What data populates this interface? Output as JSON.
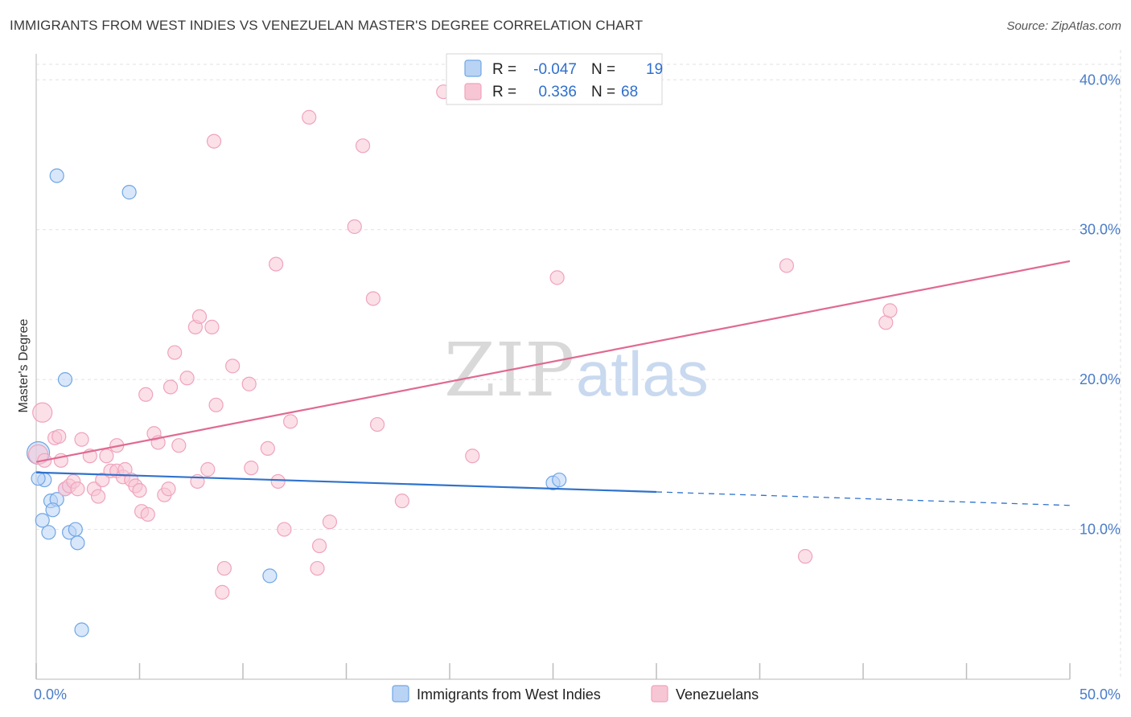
{
  "header": {
    "title": "IMMIGRANTS FROM WEST INDIES VS VENEZUELAN MASTER'S DEGREE CORRELATION CHART",
    "source": "Source: ZipAtlas.com"
  },
  "watermark": {
    "zip": "ZIP",
    "atlas": "atlas"
  },
  "chart_data": {
    "type": "scatter",
    "title": "IMMIGRANTS FROM WEST INDIES VS VENEZUELAN MASTER'S DEGREE CORRELATION CHART",
    "xlabel": "",
    "ylabel": "Master's Degree",
    "xlim": [
      0,
      50
    ],
    "ylim": [
      0,
      42
    ],
    "x_tick_labels": [
      "0.0%",
      "50.0%"
    ],
    "y_ticks": [
      10,
      20,
      30,
      40
    ],
    "y_tick_labels": [
      "10.0%",
      "20.0%",
      "30.0%",
      "40.0%"
    ],
    "grid": true,
    "legend_position": "top-center",
    "series": [
      {
        "name": "Immigrants from West Indies",
        "color": "#6fa6e6",
        "fill": "#b9d3f5",
        "line_color": "#2f72cc",
        "R": "-0.047",
        "N": "19",
        "trend": {
          "x0": 0,
          "y0": 13.8,
          "x1": 30,
          "y1": 12.5,
          "dash_to_x": 50,
          "dash_to_y": 11.6
        },
        "points": [
          [
            0.1,
            15.1,
            14
          ],
          [
            0.4,
            13.3,
            8
          ],
          [
            1.0,
            33.6,
            8
          ],
          [
            4.5,
            32.5,
            8
          ],
          [
            1.4,
            20.0,
            8
          ],
          [
            0.7,
            11.9,
            8
          ],
          [
            1.0,
            12.0,
            8
          ],
          [
            1.4,
            12.7,
            8
          ],
          [
            0.8,
            11.3,
            8
          ],
          [
            0.3,
            10.6,
            8
          ],
          [
            0.6,
            9.8,
            8
          ],
          [
            1.6,
            9.8,
            8
          ],
          [
            1.9,
            10.0,
            8
          ],
          [
            2.0,
            9.1,
            8
          ],
          [
            2.2,
            3.3,
            8
          ],
          [
            11.3,
            6.9,
            8
          ],
          [
            25.0,
            13.1,
            8
          ],
          [
            25.3,
            13.3,
            8
          ],
          [
            0.1,
            13.4,
            8
          ]
        ]
      },
      {
        "name": "Venezuelans",
        "color": "#f0a3bc",
        "fill": "#f7c6d5",
        "line_color": "#e06a92",
        "R": "0.336",
        "N": "68",
        "trend": {
          "x0": 0,
          "y0": 14.5,
          "x1": 50,
          "y1": 27.9
        },
        "points": [
          [
            0.3,
            17.8,
            12
          ],
          [
            0.1,
            15.0,
            12
          ],
          [
            0.4,
            14.6,
            8
          ],
          [
            0.9,
            16.1,
            8
          ],
          [
            1.1,
            16.2,
            8
          ],
          [
            1.2,
            14.6,
            8
          ],
          [
            1.4,
            12.7,
            8
          ],
          [
            1.6,
            12.9,
            8
          ],
          [
            1.8,
            13.2,
            8
          ],
          [
            2.0,
            12.7,
            8
          ],
          [
            2.2,
            16.0,
            8
          ],
          [
            2.6,
            14.9,
            8
          ],
          [
            2.8,
            12.7,
            8
          ],
          [
            3.0,
            12.2,
            8
          ],
          [
            3.2,
            13.3,
            8
          ],
          [
            3.4,
            14.9,
            8
          ],
          [
            3.6,
            13.9,
            8
          ],
          [
            3.9,
            13.9,
            8
          ],
          [
            3.9,
            15.6,
            8
          ],
          [
            4.2,
            13.5,
            8
          ],
          [
            4.3,
            14.0,
            8
          ],
          [
            4.6,
            13.3,
            8
          ],
          [
            4.8,
            12.9,
            8
          ],
          [
            5.0,
            12.6,
            8
          ],
          [
            5.1,
            11.2,
            8
          ],
          [
            5.4,
            11.0,
            8
          ],
          [
            5.3,
            19.0,
            8
          ],
          [
            5.7,
            16.4,
            8
          ],
          [
            5.9,
            15.8,
            8
          ],
          [
            6.2,
            12.3,
            8
          ],
          [
            6.4,
            12.7,
            8
          ],
          [
            6.5,
            19.5,
            8
          ],
          [
            6.7,
            21.8,
            8
          ],
          [
            6.9,
            15.6,
            8
          ],
          [
            7.3,
            20.1,
            8
          ],
          [
            7.7,
            23.5,
            8
          ],
          [
            7.8,
            13.2,
            8
          ],
          [
            7.9,
            24.2,
            8
          ],
          [
            8.3,
            14.0,
            8
          ],
          [
            8.5,
            23.5,
            8
          ],
          [
            8.6,
            35.9,
            8
          ],
          [
            8.7,
            18.3,
            8
          ],
          [
            9.0,
            5.8,
            8
          ],
          [
            9.1,
            7.4,
            8
          ],
          [
            9.5,
            20.9,
            8
          ],
          [
            10.3,
            19.7,
            8
          ],
          [
            10.4,
            14.1,
            8
          ],
          [
            11.2,
            15.4,
            8
          ],
          [
            11.6,
            27.7,
            8
          ],
          [
            11.7,
            13.2,
            8
          ],
          [
            12.0,
            10.0,
            8
          ],
          [
            12.3,
            17.2,
            8
          ],
          [
            13.2,
            37.5,
            8
          ],
          [
            13.6,
            7.4,
            8
          ],
          [
            13.7,
            8.9,
            8
          ],
          [
            14.2,
            10.5,
            8
          ],
          [
            15.4,
            30.2,
            8
          ],
          [
            15.8,
            35.6,
            8
          ],
          [
            16.3,
            25.4,
            8
          ],
          [
            16.5,
            17.0,
            8
          ],
          [
            17.7,
            11.9,
            8
          ],
          [
            19.7,
            39.2,
            8
          ],
          [
            21.1,
            14.9,
            8
          ],
          [
            25.2,
            26.8,
            8
          ],
          [
            36.3,
            27.6,
            8
          ],
          [
            37.2,
            8.2,
            8
          ],
          [
            41.1,
            23.8,
            8
          ],
          [
            41.3,
            24.6,
            8
          ]
        ]
      }
    ]
  }
}
